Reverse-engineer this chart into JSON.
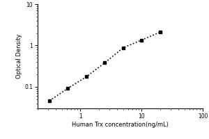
{
  "x": [
    0.3125,
    0.625,
    1.25,
    2.5,
    5.0,
    10.0,
    20.0
  ],
  "y": [
    0.046,
    0.092,
    0.175,
    0.38,
    0.88,
    1.35,
    2.1
  ],
  "xlabel": "Human Trx concentration(ng/mL)",
  "ylabel": "Optical Density",
  "xlim": [
    0.2,
    100
  ],
  "ylim": [
    0.03,
    10
  ],
  "marker": "s",
  "marker_color": "black",
  "marker_size": 3.5,
  "line_style": "dotted",
  "line_color": "black",
  "line_width": 1.2,
  "xlabel_fontsize": 6,
  "ylabel_fontsize": 6,
  "tick_fontsize": 5.5,
  "background_color": "#ffffff"
}
